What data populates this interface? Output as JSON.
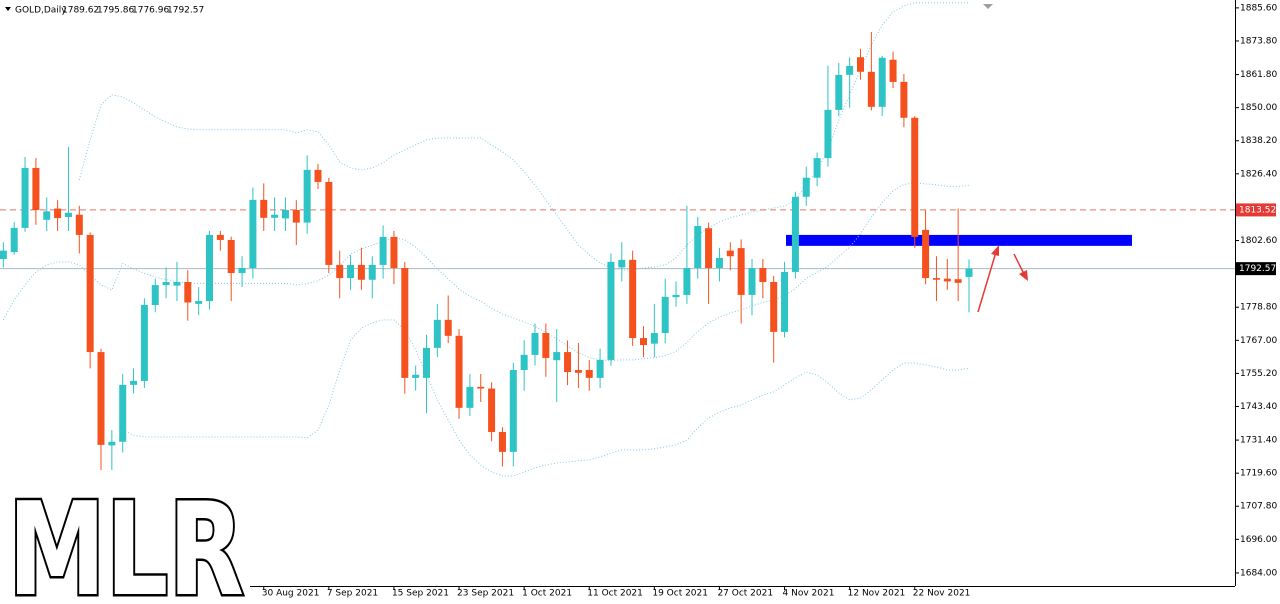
{
  "chart_data": {
    "type": "candlestick",
    "title": "GOLD,Daily",
    "watermark": "MLR",
    "categories": [
      null,
      null,
      null,
      null,
      null,
      null,
      null,
      null,
      null,
      null,
      null,
      null,
      null,
      null,
      null,
      null,
      null,
      null,
      null,
      null,
      null,
      null,
      null,
      null,
      "30 Aug 2021",
      null,
      null,
      null,
      null,
      null,
      "7 Sep 2021",
      null,
      null,
      null,
      null,
      null,
      "15 Sep 2021",
      null,
      null,
      null,
      null,
      null,
      "23 Sep 2021",
      null,
      null,
      null,
      null,
      null,
      "1 Oct 2021",
      null,
      null,
      null,
      null,
      null,
      "11 Oct 2021",
      null,
      null,
      null,
      null,
      null,
      "19 Oct 2021",
      null,
      null,
      null,
      null,
      null,
      "27 Oct 2021",
      null,
      null,
      null,
      null,
      null,
      "4 Nov 2021",
      null,
      null,
      null,
      null,
      null,
      "12 Nov 2021",
      null,
      null,
      null,
      null,
      null,
      "22 Nov 2021",
      null,
      null,
      null,
      null,
      null
    ],
    "open": [
      1796,
      1798.5,
      1807.1,
      1828.5,
      1810,
      1814,
      1811,
      1811.8,
      1804.6,
      1762.8,
      1729.5,
      1730.8,
      1751.1,
      1752.5,
      1779.6,
      1786.7,
      1786.5,
      1787.8,
      1780,
      1781,
      1804.6,
      1802.8,
      1791,
      1792.8,
      1817.1,
      1810.7,
      1810.5,
      1813.5,
      1809,
      1827.8,
      1823.5,
      1793.9,
      1789.2,
      1793.9,
      1788.6,
      1793.9,
      1803.9,
      1792.8,
      1753.6,
      1753.6,
      1764.3,
      1774.3,
      1768.6,
      1742.9,
      1750.4,
      1749.8,
      1734.3,
      1727.2,
      1756.4,
      1761.8,
      1769.6,
      1759.9,
      1762.8,
      1756.4,
      1756.4,
      1753.6,
      1760,
      1793,
      1795.7,
      1767.8,
      1765.8,
      1769.6,
      1782.4,
      1783.2,
      1792.8,
      1807,
      1792.8,
      1799,
      1799.9,
      1783.2,
      1792.8,
      1787.8,
      1770,
      1791.4,
      1818.2,
      1825,
      1832,
      1849.2,
      1861.7,
      1868,
      1862.8,
      1850.3,
      1867.1,
      1859.2,
      1846.4,
      1806.4,
      1789.2,
      1789,
      1788.8,
      1789.62
    ],
    "high": [
      1802,
      1809.2,
      1832.4,
      1832,
      1818,
      1817,
      1836,
      1815,
      1805.5,
      1764,
      1735,
      1755,
      1757,
      1782,
      1789,
      1793,
      1795,
      1792,
      1786,
      1806,
      1806,
      1804,
      1797,
      1821.5,
      1823,
      1818,
      1818,
      1817,
      1833,
      1830,
      1825,
      1799,
      1797.5,
      1800,
      1797,
      1808,
      1806,
      1795,
      1758,
      1769,
      1780,
      1783,
      1771,
      1755,
      1755,
      1752,
      1736,
      1759,
      1767,
      1773,
      1773,
      1771,
      1767,
      1766,
      1760,
      1764,
      1798,
      1802,
      1799,
      1772,
      1780,
      1789,
      1788,
      1815,
      1811,
      1809,
      1800,
      1802,
      1803,
      1796,
      1796,
      1790,
      1795,
      1820,
      1829,
      1834,
      1865,
      1866,
      1868,
      1871,
      1877,
      1868.5,
      1870,
      1862,
      1847,
      1813.5,
      1797,
      1796,
      1814,
      1795.86
    ],
    "low": [
      1793,
      1797.5,
      1805.7,
      1808.2,
      1806,
      1806,
      1806,
      1798,
      1757,
      1717.9,
      1719,
      1727,
      1748,
      1750,
      1777,
      1782,
      1781,
      1774,
      1776,
      1778,
      1799,
      1781,
      1786,
      1789,
      1806,
      1806,
      1806,
      1801,
      1805,
      1821,
      1791,
      1782,
      1785,
      1785,
      1782,
      1789,
      1787,
      1748,
      1749,
      1741,
      1761,
      1766,
      1739,
      1740,
      1745,
      1731,
      1722,
      1722,
      1749,
      1758,
      1754,
      1745,
      1751,
      1750,
      1749,
      1750,
      1758,
      1788,
      1765,
      1761,
      1761,
      1766,
      1779,
      1780,
      1789,
      1780,
      1788,
      1792,
      1773,
      1776,
      1782,
      1759,
      1768,
      1789,
      1815,
      1822,
      1829,
      1847,
      1850,
      1860,
      1849,
      1847,
      1857,
      1843,
      1800,
      1787,
      1781,
      1785,
      1781,
      1776.96
    ],
    "close": [
      1799,
      1807.1,
      1828.5,
      1813.5,
      1813,
      1810.6,
      1812.5,
      1804.6,
      1762.8,
      1729.7,
      1730.8,
      1751.1,
      1752.5,
      1779.6,
      1786.7,
      1787.8,
      1787.8,
      1780.5,
      1781,
      1804.6,
      1802.8,
      1791,
      1792.8,
      1817.1,
      1810.7,
      1811.8,
      1813.5,
      1809,
      1827.8,
      1823.5,
      1793.9,
      1789.2,
      1793.9,
      1788.6,
      1793.9,
      1803.9,
      1792.8,
      1753.6,
      1754.7,
      1764.3,
      1774.3,
      1768.6,
      1742.9,
      1750.4,
      1749.8,
      1734.3,
      1727.2,
      1756.4,
      1761.8,
      1769.6,
      1760.7,
      1762.8,
      1755.7,
      1755.4,
      1753.6,
      1760,
      1795,
      1795.7,
      1767.8,
      1765.3,
      1769.6,
      1782.5,
      1783.2,
      1792.8,
      1807.8,
      1792.8,
      1796.4,
      1797,
      1783.2,
      1792.8,
      1787.8,
      1770,
      1791.4,
      1818.2,
      1825,
      1832,
      1849.2,
      1861.7,
      1864.9,
      1862.8,
      1850.3,
      1867.8,
      1859.2,
      1846.4,
      1803.9,
      1789.2,
      1788.6,
      1788,
      1787.5,
      1792.57
    ],
    "up_color": "#2ec4c6",
    "down_color": "#f4511e",
    "series": [
      {
        "color": "#7fc9e8",
        "values": [
          null,
          null,
          null,
          null,
          null,
          null,
          null,
          1824.2,
          1838.5,
          1851,
          1854.6,
          1853.8,
          1851.7,
          1849.2,
          1846.7,
          1844.9,
          1843.1,
          1842.4,
          1842.1,
          1842.1,
          1842.1,
          1842.1,
          1842.1,
          1842.1,
          1842.1,
          1842.1,
          1842.1,
          1841,
          1842.1,
          1841.4,
          1836.7,
          1830.6,
          1828.5,
          1827.8,
          1828.5,
          1830.3,
          1833.1,
          1834.9,
          1836.7,
          1838.5,
          1839.2,
          1839.2,
          1839.2,
          1839.2,
          1839.2,
          1836.7,
          1834.2,
          1831.4,
          1827.1,
          1822.4,
          1817.1,
          1811.7,
          1806.4,
          1801,
          1797.5,
          1794.6,
          1792.8,
          1792.1,
          1792.1,
          1792.8,
          1793.2,
          1793.9,
          1796.4,
          1801,
          1804.6,
          1807.1,
          1809.2,
          1810.7,
          1811.7,
          1812.8,
          1813.5,
          1814.2,
          1814.9,
          1817.1,
          1822.4,
          1827.8,
          1834.9,
          1845.6,
          1854.6,
          1863.5,
          1872.4,
          1879.5,
          1884.2,
          1886.3,
          1887.4,
          1887.4,
          1887.4,
          1887.4,
          1887.4,
          1887.4
        ]
      },
      {
        "color": "#7fc9e8",
        "values": [
          1774.3,
          1781.4,
          1786.8,
          1791.4,
          1793.9,
          1795,
          1795,
          1793.9,
          1790.3,
          1786.8,
          1785,
          1794.4,
          1792.5,
          1790.9,
          1789.6,
          1788.7,
          1787.8,
          1787.5,
          1787.3,
          1787.3,
          1787.3,
          1787.3,
          1787.3,
          1787.3,
          1787.3,
          1787.3,
          1787.3,
          1786.8,
          1787.2,
          1788.2,
          1790.3,
          1793.5,
          1797.8,
          1799.6,
          1800.9,
          1802.3,
          1803.7,
          1802.8,
          1800.2,
          1796.6,
          1792.5,
          1788.9,
          1785.3,
          1782.7,
          1780.9,
          1778.4,
          1776.4,
          1775,
          1773.6,
          1772,
          1769.8,
          1767.5,
          1765,
          1762.5,
          1760.9,
          1760,
          1759.8,
          1760,
          1760,
          1760.4,
          1760.8,
          1761.5,
          1763.1,
          1766.2,
          1770.2,
          1773.2,
          1775.3,
          1776.8,
          1777.8,
          1779.3,
          1780.5,
          1781.4,
          1783,
          1785.4,
          1789.1,
          1791.2,
          1793.4,
          1796.9,
          1800.2,
          1805,
          1810.9,
          1816.2,
          1820.3,
          1822.6,
          1823.2,
          1822.8,
          1822.5,
          1821.9,
          1821.9,
          1822.3
        ]
      },
      {
        "color": "#7fc9e8",
        "values": [
          null,
          null,
          null,
          null,
          null,
          null,
          null,
          null,
          null,
          null,
          null,
          1735,
          1733.2,
          1732.5,
          1732.5,
          1732.5,
          1732.5,
          1732.5,
          1732.5,
          1732.5,
          1732.5,
          1732.5,
          1732.5,
          1732.5,
          1732.5,
          1732.5,
          1732.5,
          1732.5,
          1732.2,
          1735,
          1743.9,
          1756.4,
          1767.1,
          1771.4,
          1773.2,
          1774.3,
          1774.3,
          1770.7,
          1763.6,
          1754.6,
          1745.7,
          1738.6,
          1731.4,
          1726.1,
          1722.5,
          1720,
          1718.6,
          1718.6,
          1720,
          1721.5,
          1722.5,
          1723.2,
          1723.6,
          1724,
          1724.3,
          1725.4,
          1726.8,
          1727.9,
          1727.9,
          1727.9,
          1728.3,
          1729,
          1729.7,
          1731.4,
          1735.7,
          1739.3,
          1741.4,
          1742.9,
          1743.9,
          1745.7,
          1747.5,
          1748.6,
          1751.1,
          1753.6,
          1755.7,
          1754.6,
          1751.8,
          1748.2,
          1745.7,
          1746.4,
          1749.3,
          1752.9,
          1756.4,
          1758.9,
          1758.9,
          1758.2,
          1757.5,
          1756.4,
          1756.4,
          1757.1
        ]
      }
    ],
    "hlines": [
      {
        "value": 1813.52,
        "color": "#e57368",
        "label_color": "#e53935",
        "dashed": true
      },
      {
        "value": 1792.57,
        "color": "#a9bcc4",
        "label_color": "#000000",
        "dashed": false
      }
    ],
    "zone": {
      "low": 1800.7,
      "high": 1804.6,
      "color": "#0000ff"
    },
    "ylim": [
      1679.7,
      1887.7
    ],
    "yticks": [
      {
        "value": 1885.6,
        "label": "1885.60"
      },
      {
        "value": 1873.8,
        "label": "1873.80"
      },
      {
        "value": 1861.8,
        "label": "1861.80"
      },
      {
        "value": 1850,
        "label": "1850.00"
      },
      {
        "value": 1838.2,
        "label": "1838.20"
      },
      {
        "value": 1826.4,
        "label": "1826.40"
      },
      {
        "value": 1802.6,
        "label": "1802.60"
      },
      {
        "value": 1778.8,
        "label": "1778.80"
      },
      {
        "value": 1767,
        "label": "1767.00"
      },
      {
        "value": 1755.2,
        "label": "1755.20"
      },
      {
        "value": 1743.4,
        "label": "1743.40"
      },
      {
        "value": 1731.4,
        "label": "1731.40"
      },
      {
        "value": 1719.6,
        "label": "1719.60"
      },
      {
        "value": 1707.8,
        "label": "1707.80"
      },
      {
        "value": 1696,
        "label": "1696.00"
      },
      {
        "value": 1684,
        "label": "1684.00"
      }
    ]
  }
}
